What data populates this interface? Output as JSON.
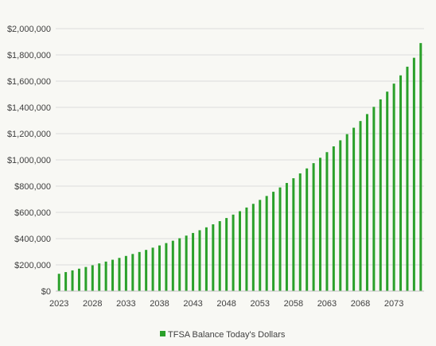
{
  "chart_data": {
    "type": "bar",
    "title": "",
    "xlabel": "",
    "ylabel": "",
    "ylim": [
      0,
      2000000
    ],
    "y_ticks": [
      0,
      200000,
      400000,
      600000,
      800000,
      1000000,
      1200000,
      1400000,
      1600000,
      1800000,
      2000000
    ],
    "y_tick_labels": [
      "$0",
      "$200,000",
      "$400,000",
      "$600,000",
      "$800,000",
      "$1,000,000",
      "$1,200,000",
      "$1,400,000",
      "$1,600,000",
      "$1,800,000",
      "$2,000,000"
    ],
    "x_tick_labels": [
      "2023",
      "2028",
      "2033",
      "2038",
      "2043",
      "2048",
      "2053",
      "2058",
      "2063",
      "2068",
      "2073"
    ],
    "x_tick_every": 5,
    "grid": true,
    "legend_position": "bottom",
    "categories": [
      2023,
      2024,
      2025,
      2026,
      2027,
      2028,
      2029,
      2030,
      2031,
      2032,
      2033,
      2034,
      2035,
      2036,
      2037,
      2038,
      2039,
      2040,
      2041,
      2042,
      2043,
      2044,
      2045,
      2046,
      2047,
      2048,
      2049,
      2050,
      2051,
      2052,
      2053,
      2054,
      2055,
      2056,
      2057,
      2058,
      2059,
      2060,
      2061,
      2062,
      2063,
      2064,
      2065,
      2066,
      2067,
      2068,
      2069,
      2070,
      2071,
      2072,
      2073,
      2074,
      2075,
      2076,
      2077
    ],
    "series": [
      {
        "name": "TFSA Balance Today's Dollars",
        "color": "#2aa02a",
        "values": [
          132000,
          145000,
          158000,
          171000,
          184000,
          197000,
          211000,
          225000,
          239000,
          253000,
          268000,
          283000,
          298000,
          314000,
          331000,
          348000,
          366000,
          384000,
          403000,
          423000,
          443000,
          464000,
          486000,
          509000,
          533000,
          557000,
          583000,
          609000,
          637000,
          665000,
          695000,
          725000,
          757000,
          790000,
          824000,
          860000,
          897000,
          935000,
          975000,
          1016000,
          1059000,
          1103000,
          1149000,
          1196000,
          1245000,
          1296000,
          1349000,
          1404000,
          1461000,
          1520000,
          1581000,
          1644000,
          1710000,
          1778000,
          1890000
        ]
      }
    ]
  }
}
